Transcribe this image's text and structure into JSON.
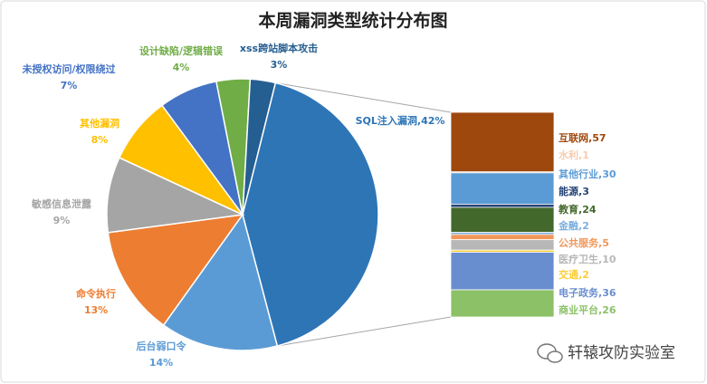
{
  "chart_data": {
    "type": "pie",
    "title": "本周漏洞类型统计分布图",
    "categories": [
      "SQL注入漏洞",
      "后台弱口令",
      "命令执行",
      "敏感信息泄露",
      "其他漏洞",
      "未授权访问/权限绕过",
      "设计缺陷/逻辑错误",
      "xss跨站脚本攻击"
    ],
    "values": [
      42,
      14,
      13,
      9,
      8,
      7,
      4,
      3
    ],
    "value_labels": [
      "42%",
      "14%",
      "13%",
      "9%",
      "8%",
      "7%",
      "4%",
      "3%"
    ],
    "colors": [
      "#2e75b6",
      "#5b9bd5",
      "#ed7d31",
      "#a5a5a5",
      "#ffc000",
      "#4472c4",
      "#70ad47",
      "#255e91"
    ],
    "label_separator": ",",
    "breakdown": {
      "type": "bar",
      "categories": [
        "互联网",
        "水利",
        "其他行业",
        "能源",
        "教育",
        "金融",
        "公共服务",
        "医疗卫生",
        "交通",
        "电子政务",
        "商业平台"
      ],
      "values": [
        57,
        1,
        30,
        3,
        24,
        2,
        5,
        10,
        2,
        36,
        26
      ],
      "colors": [
        "#9e480e",
        "#f8cbad",
        "#5b9bd5",
        "#264478",
        "#43682b",
        "#7cafdd",
        "#f1975a",
        "#b7b7b7",
        "#ffcd33",
        "#698ed0",
        "#8cc168"
      ]
    }
  },
  "watermark": "轩辕攻防实验室"
}
